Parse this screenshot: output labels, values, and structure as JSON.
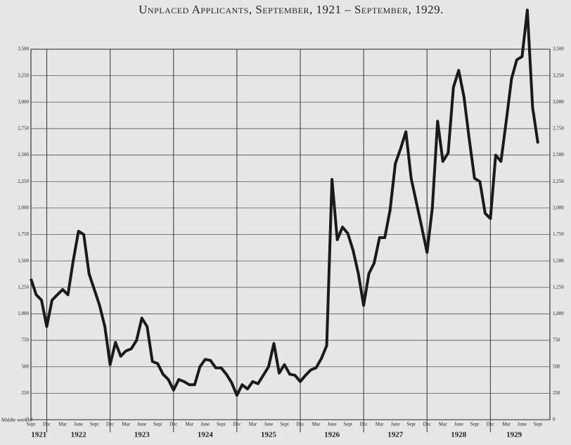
{
  "chart_data": {
    "type": "line",
    "title": "Unplaced Applicants, September, 1921 – September, 1929.",
    "x_axis_label": "Middle week of",
    "categories": [
      "Sept",
      null,
      null,
      "Dec",
      null,
      null,
      "Mar",
      null,
      null,
      "June",
      null,
      null,
      "Sept",
      null,
      null,
      "Dec",
      null,
      null,
      "Mar",
      null,
      null,
      "June",
      null,
      null,
      "Sept",
      null,
      null,
      "Dec",
      null,
      null,
      "Mar",
      null,
      null,
      "June",
      null,
      null,
      "Sept",
      null,
      null,
      "Dec",
      null,
      null,
      "Mar",
      null,
      null,
      "June",
      null,
      null,
      "Sept",
      null,
      null,
      "Dec",
      null,
      null,
      "Mar",
      null,
      null,
      "June",
      null,
      null,
      "Sept",
      null,
      null,
      "Dec",
      null,
      null,
      "Mar",
      null,
      null,
      "June",
      null,
      null,
      "Sept",
      null,
      null,
      "Dec",
      null,
      null,
      "Mar",
      null,
      null,
      "June",
      null,
      null,
      "Sept",
      null,
      null,
      "Dec",
      null,
      null,
      "Mar",
      null,
      null,
      "June",
      null,
      null,
      "Sept"
    ],
    "years": [
      "1921",
      "1922",
      "1923",
      "1924",
      "1925",
      "1926",
      "1927",
      "1928",
      "1929"
    ],
    "values": [
      1330,
      1180,
      1130,
      880,
      1130,
      1180,
      1230,
      1180,
      1500,
      1780,
      1750,
      1380,
      1230,
      1080,
      880,
      520,
      730,
      600,
      650,
      670,
      750,
      960,
      880,
      550,
      530,
      430,
      380,
      280,
      380,
      360,
      330,
      330,
      500,
      570,
      560,
      490,
      490,
      430,
      350,
      230,
      330,
      290,
      360,
      340,
      420,
      500,
      720,
      440,
      520,
      430,
      420,
      360,
      420,
      470,
      490,
      580,
      700,
      2270,
      1700,
      1820,
      1760,
      1600,
      1380,
      1080,
      1380,
      1480,
      1720,
      1720,
      1980,
      2420,
      2560,
      2720,
      2280,
      2050,
      1820,
      1580,
      2000,
      2820,
      2440,
      2520,
      3140,
      3300,
      3050,
      2650,
      2280,
      2250,
      1950,
      1900,
      2500,
      2440,
      2820,
      3220,
      3400,
      3430,
      3870,
      2950,
      2610
    ],
    "color": "#1a1a1a",
    "ylim": [
      0,
      3500
    ],
    "yticks": [
      0,
      250,
      500,
      750,
      {
        "value": 1000,
        "label": "1,000"
      },
      {
        "value": 1250,
        "label": "1,250"
      },
      {
        "value": 1500,
        "label": "1,500"
      },
      {
        "value": 1750,
        "label": "1,750"
      },
      {
        "value": 2000,
        "label": "2,000"
      },
      {
        "value": 2250,
        "label": "2,250"
      },
      {
        "value": 2500,
        "label": "2,500"
      },
      {
        "value": 2750,
        "label": "2,750"
      },
      {
        "value": 3000,
        "label": "3,000"
      },
      {
        "value": 3250,
        "label": "3,250"
      },
      {
        "value": 3500,
        "label": "3,500"
      }
    ],
    "grid": true
  }
}
